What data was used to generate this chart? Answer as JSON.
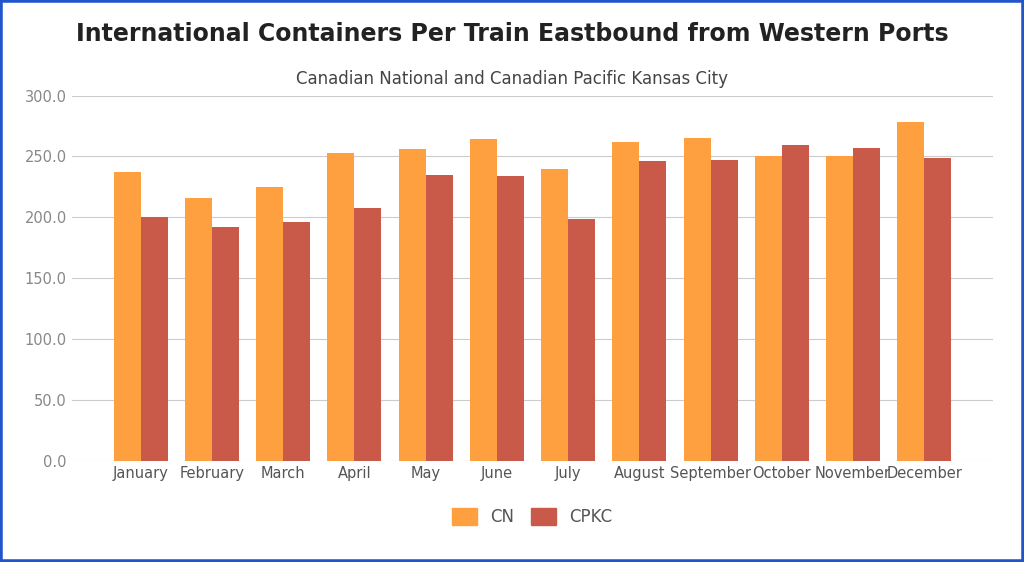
{
  "title": "International Containers Per Train Eastbound from Western Ports",
  "subtitle": "Canadian National and Canadian Pacific Kansas City",
  "months": [
    "January",
    "February",
    "March",
    "April",
    "May",
    "June",
    "July",
    "August",
    "September",
    "October",
    "November",
    "December"
  ],
  "cn_values": [
    237,
    216,
    225,
    253,
    256,
    264,
    240,
    262,
    265,
    250,
    250,
    278
  ],
  "cpkc_values": [
    200,
    192,
    196,
    208,
    235,
    234,
    199,
    246,
    247,
    259,
    257,
    249
  ],
  "cn_color": "#FFA040",
  "cpkc_color": "#C95A4A",
  "ylim": [
    0,
    300
  ],
  "yticks": [
    0,
    50,
    100,
    150,
    200,
    250,
    300
  ],
  "ytick_labels": [
    "0.0",
    "50.0",
    "100.0",
    "150.0",
    "200.0",
    "250.0",
    "300.0"
  ],
  "background_color": "#FFFFFF",
  "border_color": "#2255CC",
  "title_fontsize": 17,
  "subtitle_fontsize": 12,
  "legend_labels": [
    "CN",
    "CPKC"
  ],
  "bar_width": 0.38,
  "grid_color": "#CCCCCC"
}
